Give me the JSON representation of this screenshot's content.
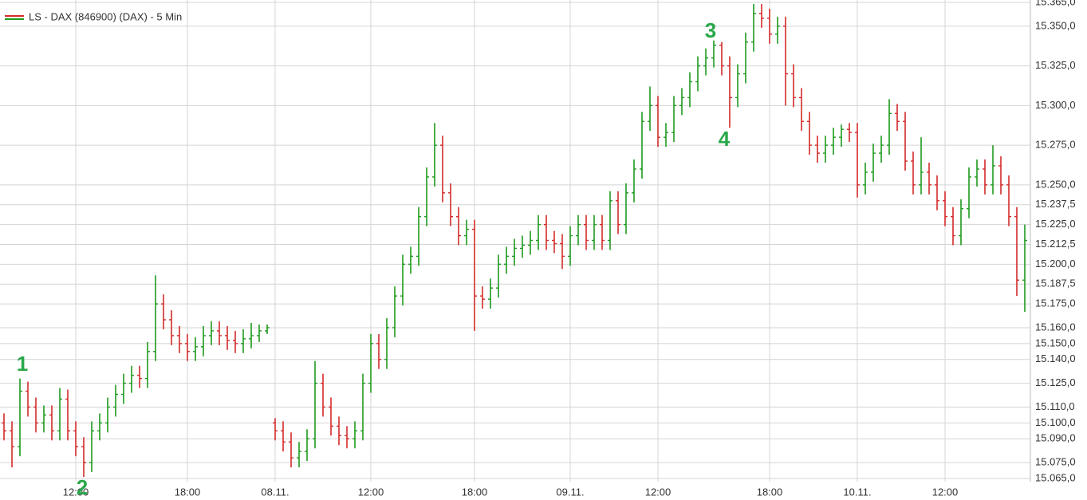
{
  "chart_data": {
    "type": "ohlc",
    "title": "LS - DAX (846900) (DAX) - 5 Min",
    "up_color": "#1e9a1e",
    "down_color": "#d42a2a",
    "grid": true,
    "ylim": [
      15065,
      15365
    ],
    "yticks": [
      {
        "value": 15365,
        "label": "15.365,0"
      },
      {
        "value": 15350,
        "label": "15.350,0"
      },
      {
        "value": 15325,
        "label": "15.325,0"
      },
      {
        "value": 15300,
        "label": "15.300,0"
      },
      {
        "value": 15275,
        "label": "15.275,0"
      },
      {
        "value": 15250,
        "label": "15.250,0"
      },
      {
        "value": 15237.5,
        "label": "15.237,5"
      },
      {
        "value": 15225,
        "label": "15.225,0"
      },
      {
        "value": 15212.5,
        "label": "15.212,5"
      },
      {
        "value": 15200,
        "label": "15.200,0"
      },
      {
        "value": 15187.5,
        "label": "15.187,5"
      },
      {
        "value": 15175,
        "label": "15.175,0"
      },
      {
        "value": 15160,
        "label": "15.160,0"
      },
      {
        "value": 15150,
        "label": "15.150,0"
      },
      {
        "value": 15140,
        "label": "15.140,0"
      },
      {
        "value": 15125,
        "label": "15.125,0"
      },
      {
        "value": 15110,
        "label": "15.110,0"
      },
      {
        "value": 15100,
        "label": "15.100,0"
      },
      {
        "value": 15090,
        "label": "15.090,0"
      },
      {
        "value": 15075,
        "label": "15.075,0"
      },
      {
        "value": 15065,
        "label": "15.065,0"
      }
    ],
    "categories": [
      null,
      null,
      null,
      null,
      null,
      null,
      null,
      null,
      null,
      "12:00",
      null,
      null,
      null,
      null,
      null,
      null,
      null,
      null,
      null,
      null,
      null,
      null,
      null,
      "18:00",
      null,
      null,
      null,
      null,
      null,
      null,
      null,
      null,
      null,
      null,
      "08.11.",
      null,
      null,
      null,
      null,
      null,
      null,
      null,
      null,
      null,
      null,
      null,
      "12:00",
      null,
      null,
      null,
      null,
      null,
      null,
      null,
      null,
      null,
      null,
      null,
      null,
      "18:00",
      null,
      null,
      null,
      null,
      null,
      null,
      null,
      null,
      null,
      null,
      null,
      "09.11.",
      null,
      null,
      null,
      null,
      null,
      null,
      null,
      null,
      null,
      null,
      "12:00",
      null,
      null,
      null,
      null,
      null,
      null,
      null,
      null,
      null,
      null,
      null,
      null,
      null,
      "18:00",
      null,
      null,
      null,
      null,
      null,
      null,
      null,
      null,
      null,
      null,
      "10.11.",
      null,
      null,
      null,
      null,
      null,
      null,
      null,
      null,
      null,
      null,
      "12:00",
      null,
      null,
      null,
      null,
      null,
      null,
      null,
      null,
      null,
      null
    ],
    "open": [
      15100,
      15095,
      15085,
      15120,
      15110,
      15100,
      15105,
      15095,
      15115,
      15095,
      15085,
      15075,
      15095,
      15100,
      15110,
      15118,
      15125,
      15130,
      15128,
      15145,
      15175,
      15165,
      15155,
      15150,
      15145,
      15148,
      15155,
      15158,
      15155,
      15152,
      15150,
      15153,
      15155,
      15158,
      15100,
      15095,
      15088,
      15078,
      15082,
      15090,
      15125,
      15110,
      15098,
      15092,
      15090,
      15095,
      15125,
      15150,
      15140,
      15160,
      15180,
      15200,
      15205,
      15230,
      15255,
      15275,
      15245,
      15230,
      15218,
      15222,
      15180,
      15178,
      15185,
      15200,
      15205,
      15210,
      15212,
      15215,
      15225,
      15215,
      15213,
      15205,
      15218,
      15225,
      15215,
      15225,
      15215,
      15240,
      15225,
      15245,
      15260,
      15290,
      15300,
      15280,
      15283,
      15300,
      15305,
      15315,
      15325,
      15330,
      15338,
      15325,
      15305,
      15320,
      15340,
      15358,
      15355,
      15345,
      15350,
      15320,
      15305,
      15290,
      15275,
      15270,
      15275,
      15280,
      15285,
      15283,
      15250,
      15258,
      15270,
      15275,
      15295,
      15290,
      15265,
      15250,
      15258,
      15250,
      15240,
      15230,
      15218,
      15235,
      15255,
      15260,
      15250,
      15262,
      15250,
      15230,
      15190
    ],
    "high": [
      15106,
      15101,
      15128,
      15126,
      15116,
      15111,
      15111,
      15122,
      15121,
      15101,
      15091,
      15101,
      15106,
      15116,
      15124,
      15131,
      15136,
      15136,
      15151,
      15193,
      15181,
      15171,
      15161,
      15156,
      15154,
      15161,
      15164,
      15164,
      15161,
      15158,
      15159,
      15163,
      15162,
      15162,
      15103,
      15101,
      15094,
      15088,
      15096,
      15139,
      15131,
      15116,
      15104,
      15098,
      15101,
      15131,
      15156,
      15156,
      15166,
      15186,
      15206,
      15211,
      15236,
      15261,
      15289,
      15281,
      15251,
      15236,
      15228,
      15228,
      15186,
      15191,
      15206,
      15211,
      15216,
      15218,
      15221,
      15231,
      15231,
      15221,
      15219,
      15224,
      15231,
      15231,
      15231,
      15231,
      15246,
      15246,
      15251,
      15266,
      15296,
      15312,
      15306,
      15289,
      15306,
      15311,
      15321,
      15331,
      15336,
      15341,
      15340,
      15331,
      15326,
      15346,
      15364,
      15364,
      15361,
      15356,
      15356,
      15326,
      15311,
      15296,
      15281,
      15281,
      15286,
      15288,
      15289,
      15289,
      15264,
      15276,
      15281,
      15304,
      15301,
      15296,
      15271,
      15280,
      15264,
      15256,
      15246,
      15236,
      15241,
      15261,
      15266,
      15266,
      15275,
      15268,
      15256,
      15236,
      15225
    ],
    "low": [
      15089,
      15072,
      15079,
      15104,
      15094,
      15094,
      15089,
      15089,
      15089,
      15079,
      15066,
      15069,
      15089,
      15094,
      15104,
      15112,
      15119,
      15122,
      15122,
      15139,
      15159,
      15149,
      15144,
      15139,
      15139,
      15142,
      15149,
      15149,
      15146,
      15144,
      15144,
      15147,
      15151,
      15156,
      15089,
      15082,
      15072,
      15072,
      15076,
      15084,
      15104,
      15092,
      15086,
      15084,
      15084,
      15089,
      15119,
      15134,
      15134,
      15154,
      15174,
      15194,
      15199,
      15224,
      15249,
      15239,
      15224,
      15212,
      15212,
      15158,
      15172,
      15172,
      15179,
      15194,
      15199,
      15204,
      15206,
      15209,
      15209,
      15207,
      15197,
      15199,
      15212,
      15209,
      15209,
      15209,
      15209,
      15219,
      15219,
      15239,
      15254,
      15284,
      15274,
      15274,
      15277,
      15294,
      15299,
      15309,
      15319,
      15324,
      15319,
      15286,
      15299,
      15314,
      15334,
      15349,
      15339,
      15339,
      15300,
      15299,
      15284,
      15269,
      15264,
      15264,
      15269,
      15274,
      15277,
      15242,
      15244,
      15252,
      15264,
      15269,
      15284,
      15259,
      15244,
      15244,
      15244,
      15234,
      15224,
      15212,
      15212,
      15229,
      15249,
      15244,
      15244,
      15244,
      15224,
      15180,
      15170
    ],
    "close": [
      15095,
      15085,
      15120,
      15110,
      15100,
      15105,
      15095,
      15115,
      15095,
      15085,
      15075,
      15095,
      15100,
      15110,
      15118,
      15125,
      15130,
      15128,
      15145,
      15175,
      15165,
      15155,
      15150,
      15145,
      15148,
      15155,
      15158,
      15155,
      15152,
      15150,
      15153,
      15155,
      15158,
      15160,
      15095,
      15088,
      15078,
      15082,
      15090,
      15125,
      15110,
      15098,
      15092,
      15090,
      15095,
      15125,
      15150,
      15140,
      15160,
      15180,
      15200,
      15205,
      15230,
      15255,
      15275,
      15245,
      15230,
      15218,
      15222,
      15180,
      15178,
      15185,
      15200,
      15205,
      15210,
      15212,
      15215,
      15225,
      15215,
      15213,
      15205,
      15218,
      15225,
      15215,
      15225,
      15215,
      15240,
      15225,
      15245,
      15260,
      15290,
      15300,
      15280,
      15283,
      15300,
      15305,
      15315,
      15325,
      15330,
      15338,
      15325,
      15305,
      15320,
      15340,
      15358,
      15355,
      15345,
      15350,
      15320,
      15305,
      15290,
      15275,
      15270,
      15275,
      15280,
      15285,
      15283,
      15250,
      15258,
      15270,
      15275,
      15295,
      15290,
      15265,
      15250,
      15258,
      15250,
      15240,
      15230,
      15218,
      15235,
      15255,
      15260,
      15250,
      15262,
      15250,
      15230,
      15190,
      15215
    ],
    "annotations": [
      "1",
      "2",
      "3",
      "4"
    ]
  }
}
